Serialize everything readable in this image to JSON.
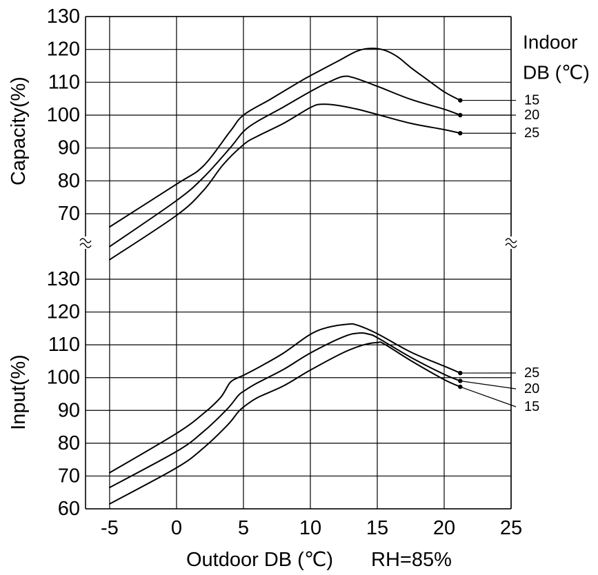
{
  "chart_data": [
    {
      "type": "line",
      "ylabel": "Capacity(%)",
      "xlim": [
        -6.8,
        25
      ],
      "ylim": [
        55,
        130
      ],
      "xticks": [
        -5,
        0,
        5,
        10,
        15,
        20,
        25
      ],
      "yticks": [
        130,
        120,
        110,
        100,
        90,
        80,
        70
      ],
      "grid": true,
      "legend_title": [
        "Indoor",
        "DB (℃)"
      ],
      "legend_placement": "right",
      "series": [
        {
          "name": "15",
          "points": [
            [
              -5,
              66
            ],
            [
              0,
              79
            ],
            [
              2,
              84.5
            ],
            [
              4,
              95
            ],
            [
              5,
              100
            ],
            [
              7,
              104.8
            ],
            [
              9,
              109.7
            ],
            [
              10,
              112
            ],
            [
              12,
              116.3
            ],
            [
              13.5,
              119.5
            ],
            [
              14.5,
              120.3
            ],
            [
              15.5,
              119.8
            ],
            [
              16.5,
              117.8
            ],
            [
              17.5,
              114.5
            ],
            [
              18.5,
              111.5
            ],
            [
              20,
              107.1
            ],
            [
              21.2,
              104.5
            ]
          ]
        },
        {
          "name": "20",
          "points": [
            [
              -5,
              60
            ],
            [
              0,
              74
            ],
            [
              2,
              81
            ],
            [
              4,
              90
            ],
            [
              5,
              95
            ],
            [
              6,
              98
            ],
            [
              8,
              102.5
            ],
            [
              10,
              107.2
            ],
            [
              11.5,
              110.3
            ],
            [
              12.5,
              111.8
            ],
            [
              13.3,
              111.3
            ],
            [
              15,
              108.8
            ],
            [
              17.5,
              104.8
            ],
            [
              20,
              101.8
            ],
            [
              21.2,
              100
            ]
          ]
        },
        {
          "name": "25",
          "points": [
            [
              -5,
              56
            ],
            [
              0,
              69.5
            ],
            [
              2,
              77
            ],
            [
              3.5,
              85
            ],
            [
              5,
              91
            ],
            [
              6,
              93.5
            ],
            [
              8,
              97.5
            ],
            [
              10,
              102.3
            ],
            [
              10.8,
              103.3
            ],
            [
              12,
              103
            ],
            [
              13.5,
              101.8
            ],
            [
              15,
              100.2
            ],
            [
              17.5,
              97.5
            ],
            [
              20,
              95.6
            ],
            [
              21.2,
              94.5
            ]
          ]
        }
      ]
    },
    {
      "type": "line",
      "ylabel": "Input(%)",
      "xlabel": "Outdoor DB (℃)",
      "xlabel_note": "RH=85%",
      "xlim": [
        -6.8,
        25
      ],
      "ylim": [
        60,
        130
      ],
      "xticks": [
        -5,
        0,
        5,
        10,
        15,
        20,
        25
      ],
      "yticks": [
        130,
        120,
        110,
        100,
        90,
        80,
        70,
        60
      ],
      "grid": true,
      "legend_placement": "right",
      "series": [
        {
          "name": "25",
          "points": [
            [
              -5,
              71
            ],
            [
              0,
              83
            ],
            [
              2,
              89
            ],
            [
              3.3,
              94
            ],
            [
              4,
              98.5
            ],
            [
              4.6,
              100
            ],
            [
              5,
              100.7
            ],
            [
              6.3,
              103.5
            ],
            [
              8,
              107.5
            ],
            [
              10,
              113.2
            ],
            [
              11.3,
              115.3
            ],
            [
              12.8,
              116.3
            ],
            [
              13.5,
              116
            ],
            [
              15,
              113.4
            ],
            [
              17.5,
              107.8
            ],
            [
              20,
              103.5
            ],
            [
              21.2,
              101.4
            ]
          ]
        },
        {
          "name": "20",
          "points": [
            [
              -5,
              66.5
            ],
            [
              0,
              77.5
            ],
            [
              2,
              83.5
            ],
            [
              3.8,
              90.5
            ],
            [
              4.6,
              94.5
            ],
            [
              5,
              95.8
            ],
            [
              6,
              98.3
            ],
            [
              8,
              102.5
            ],
            [
              10,
              107.5
            ],
            [
              12.5,
              112.5
            ],
            [
              13.7,
              113.6
            ],
            [
              14.4,
              113.2
            ],
            [
              15,
              112.2
            ],
            [
              17.5,
              106.2
            ],
            [
              20,
              101
            ],
            [
              21.2,
              99
            ]
          ]
        },
        {
          "name": "15",
          "points": [
            [
              -5,
              61.5
            ],
            [
              0,
              72.5
            ],
            [
              2,
              78.5
            ],
            [
              3.8,
              85.5
            ],
            [
              4.6,
              89.5
            ],
            [
              5,
              91
            ],
            [
              6,
              93.8
            ],
            [
              8,
              97.5
            ],
            [
              10,
              102.3
            ],
            [
              12.5,
              107.7
            ],
            [
              14,
              110
            ],
            [
              15,
              110.7
            ],
            [
              15.5,
              110.3
            ],
            [
              17.5,
              105.2
            ],
            [
              20,
              99.4
            ],
            [
              21.2,
              97.2
            ]
          ]
        }
      ]
    }
  ]
}
